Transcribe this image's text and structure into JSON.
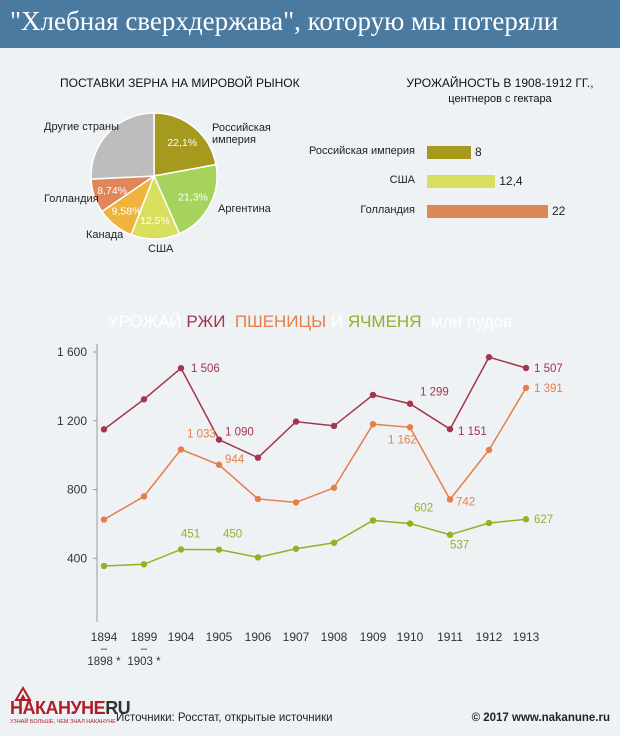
{
  "header": {
    "title": "\"Хлебная сверхдержава\", которую мы потеряли"
  },
  "chart_data": [
    {
      "type": "pie",
      "title": "ПОСТАВКИ ЗЕРНА НА МИРОВОЙ РЫНОК",
      "slices": [
        {
          "label": "Российская империя",
          "value": 22.1,
          "value_label": "22,1%",
          "color": "#a59a1e"
        },
        {
          "label": "Аргентина",
          "value": 21.3,
          "value_label": "21,3%",
          "color": "#a6d35c"
        },
        {
          "label": "США",
          "value": 12.5,
          "value_label": "12,5%",
          "color": "#d8de5e"
        },
        {
          "label": "Канада",
          "value": 9.58,
          "value_label": "9,58%",
          "color": "#efb43e"
        },
        {
          "label": "Голландия",
          "value": 8.74,
          "value_label": "8,74%",
          "color": "#e0875a"
        },
        {
          "label": "Другие страны",
          "value": 25.78,
          "value_label": "",
          "color": "#bdbdbd"
        }
      ]
    },
    {
      "type": "bar",
      "title": "УРОЖАЙНОСТЬ В 1908-1912 ГГ.,",
      "subtitle": "центнеров с гектара",
      "categories": [
        "Российская империя",
        "США",
        "Голландия"
      ],
      "values": [
        8,
        12.4,
        22
      ],
      "value_labels": [
        "8",
        "12,4",
        "22"
      ],
      "colors": [
        "#a59a1e",
        "#d8de5e",
        "#e0875a"
      ]
    },
    {
      "type": "line",
      "title_parts": [
        {
          "text": "УРОЖАЙ ",
          "color": "#ffffff"
        },
        {
          "text": "РЖИ",
          "color": "#a3354d"
        },
        {
          "text": ", ",
          "color": "#ffffff"
        },
        {
          "text": "ПШЕНИЦЫ",
          "color": "#e67e4a"
        },
        {
          "text": " И ",
          "color": "#ffffff"
        },
        {
          "text": "ЯЧМЕНЯ",
          "color": "#9aae22"
        },
        {
          "text": ", млн пудов",
          "color": "#ffffff"
        }
      ],
      "x": [
        "1894",
        "1899",
        "1904",
        "1905",
        "1906",
        "1907",
        "1908",
        "1909",
        "1910",
        "1911",
        "1912",
        "1913"
      ],
      "x_sublabels": [
        "–\n1898 *",
        "–\n1903 *",
        "",
        "",
        "",
        "",
        "",
        "",
        "",
        "",
        "",
        ""
      ],
      "ylim": [
        0,
        1600
      ],
      "yticks": [
        400,
        800,
        1200,
        1600
      ],
      "ytick_labels": [
        "400",
        "800",
        "1 200",
        "1 600"
      ],
      "series": [
        {
          "name": "РЖИ",
          "color": "#a3354d",
          "values": [
            1150,
            1325,
            1506,
            1090,
            985,
            1195,
            1170,
            1350,
            1299,
            1151,
            1570,
            1507
          ],
          "labels": [
            "",
            "",
            "1 506",
            "1 090",
            "",
            "",
            "",
            "",
            "1 299",
            "1 151",
            "",
            "1 507"
          ]
        },
        {
          "name": "ПШЕНИЦЫ",
          "color": "#e67e4a",
          "values": [
            625,
            760,
            1033,
            944,
            745,
            725,
            810,
            1180,
            1162,
            742,
            1030,
            1391
          ],
          "labels": [
            "",
            "",
            "1 033",
            "944",
            "",
            "",
            "",
            "",
            "1 162",
            "742",
            "",
            "1 391"
          ]
        },
        {
          "name": "ЯЧМЕНЯ",
          "color": "#9aae22",
          "values": [
            355,
            365,
            451,
            450,
            405,
            455,
            490,
            620,
            602,
            537,
            605,
            627
          ],
          "labels": [
            "",
            "",
            "451",
            "450",
            "",
            "",
            "",
            "",
            "602",
            "537",
            "",
            "627"
          ]
        }
      ]
    }
  ],
  "footer": {
    "logo_main": "НАКАНУНЕ",
    "logo_ru": "RU",
    "logo_sub": "УЗНАЙ БОЛЬШЕ, ЧЕМ ЗНАЛ НАКАНУНЕ",
    "sources": "Источники: Росстат, открытые источники",
    "copyright": "© 2017 www.nakanune.ru"
  }
}
